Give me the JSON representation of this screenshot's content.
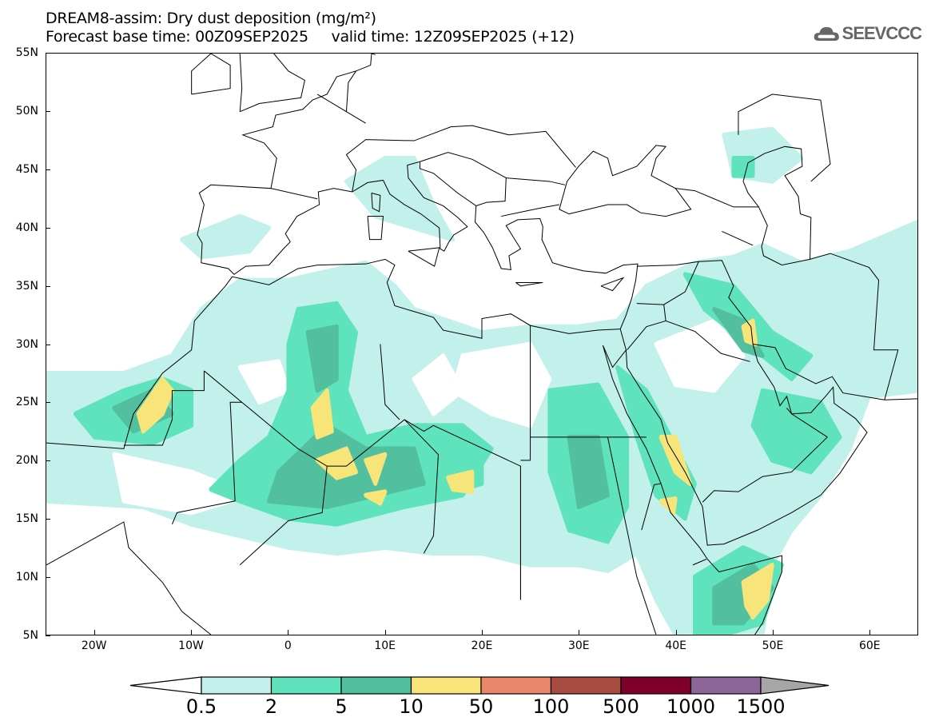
{
  "header": {
    "title": "DREAM8-assim: Dry dust deposition (mg/m²)",
    "base_time_label": "Forecast base time: 00Z09SEP2025",
    "valid_time_label": "valid time: 12Z09SEP2025 (+12)"
  },
  "logo": {
    "text": "SEEVCCC",
    "icon": "cloud-icon"
  },
  "map": {
    "lon_range": [
      -25,
      65
    ],
    "lat_range": [
      5,
      55
    ],
    "lat_ticks": [
      {
        "v": 55,
        "label": "55N"
      },
      {
        "v": 50,
        "label": "50N"
      },
      {
        "v": 45,
        "label": "45N"
      },
      {
        "v": 40,
        "label": "40N"
      },
      {
        "v": 35,
        "label": "35N"
      },
      {
        "v": 30,
        "label": "30N"
      },
      {
        "v": 25,
        "label": "25N"
      },
      {
        "v": 20,
        "label": "20N"
      },
      {
        "v": 15,
        "label": "15N"
      },
      {
        "v": 10,
        "label": "10N"
      },
      {
        "v": 5,
        "label": "5N"
      }
    ],
    "lon_ticks": [
      {
        "v": -20,
        "label": "20W"
      },
      {
        "v": -10,
        "label": "10W"
      },
      {
        "v": 0,
        "label": "0"
      },
      {
        "v": 10,
        "label": "10E"
      },
      {
        "v": 20,
        "label": "20E"
      },
      {
        "v": 30,
        "label": "30E"
      },
      {
        "v": 40,
        "label": "40E"
      },
      {
        "v": 50,
        "label": "50E"
      },
      {
        "v": 60,
        "label": "60E"
      }
    ],
    "dust_regions": [
      {
        "level": 1,
        "pts": [
          [
            -25,
            27.5
          ],
          [
            -17,
            27.5
          ],
          [
            -12,
            29
          ],
          [
            -9,
            33
          ],
          [
            -5,
            35.5
          ],
          [
            0,
            35.5
          ],
          [
            8,
            37
          ],
          [
            11,
            35
          ],
          [
            13,
            33
          ],
          [
            20,
            31
          ],
          [
            25,
            31.5
          ],
          [
            30,
            31.5
          ],
          [
            34,
            32
          ],
          [
            37,
            35
          ],
          [
            42,
            37
          ],
          [
            46,
            37.5
          ],
          [
            49,
            38.5
          ],
          [
            53,
            37
          ],
          [
            58,
            38
          ],
          [
            65,
            40.5
          ],
          [
            65,
            26
          ],
          [
            60,
            25.5
          ],
          [
            58,
            21
          ],
          [
            55,
            17
          ],
          [
            52,
            14
          ],
          [
            50,
            11
          ],
          [
            49,
            5
          ],
          [
            40,
            5
          ],
          [
            38,
            8
          ],
          [
            36,
            12
          ],
          [
            33,
            10.5
          ],
          [
            30,
            11
          ],
          [
            25,
            11
          ],
          [
            20,
            12
          ],
          [
            15,
            12
          ],
          [
            10,
            12.5
          ],
          [
            5,
            12
          ],
          [
            0,
            12.5
          ],
          [
            -5,
            13.5
          ],
          [
            -10,
            14.5
          ],
          [
            -15,
            16
          ],
          [
            -25,
            16.5
          ]
        ]
      },
      {
        "level": 1,
        "pts": [
          [
            6,
            44
          ],
          [
            10,
            46
          ],
          [
            13,
            46
          ],
          [
            15,
            42
          ],
          [
            17,
            39
          ],
          [
            13,
            40
          ],
          [
            9,
            41
          ]
        ]
      },
      {
        "level": 1,
        "pts": [
          [
            45,
            48
          ],
          [
            50,
            48.5
          ],
          [
            53,
            46
          ],
          [
            50,
            44
          ],
          [
            46,
            44.5
          ]
        ]
      },
      {
        "level": 1,
        "pts": [
          [
            -11,
            39
          ],
          [
            -5,
            41
          ],
          [
            -2,
            40
          ],
          [
            -4,
            38
          ],
          [
            -9,
            37.5
          ]
        ]
      },
      {
        "level": 0,
        "pts": [
          [
            18,
            29
          ],
          [
            25,
            30
          ],
          [
            27,
            27
          ],
          [
            25,
            23
          ],
          [
            21,
            24
          ],
          [
            17,
            26
          ]
        ]
      },
      {
        "level": 0,
        "pts": [
          [
            38,
            30
          ],
          [
            44,
            32
          ],
          [
            47,
            29
          ],
          [
            44,
            26
          ],
          [
            40,
            26.5
          ]
        ]
      },
      {
        "level": 0,
        "pts": [
          [
            -18,
            20.5
          ],
          [
            -10,
            19
          ],
          [
            -4,
            17
          ],
          [
            -10,
            15.5
          ],
          [
            -17,
            16.5
          ]
        ]
      },
      {
        "level": 0,
        "pts": [
          [
            13,
            27
          ],
          [
            16,
            29
          ],
          [
            18,
            26
          ],
          [
            15,
            24
          ]
        ]
      },
      {
        "level": 0,
        "pts": [
          [
            -5,
            28
          ],
          [
            -1,
            28.5
          ],
          [
            0,
            26
          ],
          [
            -3,
            25
          ]
        ]
      },
      {
        "level": 2,
        "pts": [
          [
            -22,
            24
          ],
          [
            -17,
            26
          ],
          [
            -13,
            27
          ],
          [
            -10,
            26
          ],
          [
            -10,
            23
          ],
          [
            -14,
            21.5
          ],
          [
            -20,
            22
          ]
        ]
      },
      {
        "level": 2,
        "pts": [
          [
            1,
            33
          ],
          [
            5,
            33.5
          ],
          [
            7,
            31
          ],
          [
            6,
            26
          ],
          [
            8,
            22
          ],
          [
            13,
            23
          ],
          [
            18,
            23
          ],
          [
            21,
            21
          ],
          [
            18,
            17
          ],
          [
            12,
            16
          ],
          [
            5,
            14.5
          ],
          [
            0,
            15
          ],
          [
            -5,
            16.5
          ],
          [
            -8,
            17.5
          ],
          [
            -5,
            20
          ],
          [
            -2,
            22
          ],
          [
            0,
            26
          ],
          [
            0,
            30
          ]
        ]
      },
      {
        "level": 2,
        "pts": [
          [
            14,
            20
          ],
          [
            20,
            20
          ],
          [
            20,
            18
          ],
          [
            16,
            17
          ]
        ]
      },
      {
        "level": 2,
        "pts": [
          [
            27,
            26
          ],
          [
            32,
            26.5
          ],
          [
            35,
            22
          ],
          [
            35,
            16
          ],
          [
            33,
            13
          ],
          [
            29,
            14
          ],
          [
            27,
            19
          ]
        ]
      },
      {
        "level": 2,
        "pts": [
          [
            34,
            28
          ],
          [
            37,
            26
          ],
          [
            42,
            18
          ],
          [
            41,
            15
          ],
          [
            38,
            17
          ],
          [
            36,
            22
          ]
        ]
      },
      {
        "level": 2,
        "pts": [
          [
            41,
            36
          ],
          [
            46,
            35
          ],
          [
            50,
            31
          ],
          [
            54,
            29
          ],
          [
            52,
            27
          ],
          [
            49,
            29
          ],
          [
            46,
            31
          ],
          [
            43,
            33
          ]
        ]
      },
      {
        "level": 2,
        "pts": [
          [
            49,
            26
          ],
          [
            55,
            25
          ],
          [
            57,
            22
          ],
          [
            54,
            19
          ],
          [
            50,
            20
          ],
          [
            48,
            23
          ]
        ]
      },
      {
        "level": 2,
        "pts": [
          [
            42,
            10
          ],
          [
            47,
            12.5
          ],
          [
            51,
            11
          ],
          [
            49,
            6
          ],
          [
            45,
            5
          ],
          [
            42,
            5
          ]
        ]
      },
      {
        "level": 2,
        "pts": [
          [
            46,
            46
          ],
          [
            48,
            46
          ],
          [
            48,
            44.5
          ],
          [
            46,
            44.5
          ]
        ]
      },
      {
        "level": 3,
        "pts": [
          [
            -18,
            24.5
          ],
          [
            -14,
            26
          ],
          [
            -12,
            24
          ],
          [
            -16,
            22.5
          ]
        ]
      },
      {
        "level": 3,
        "pts": [
          [
            2,
            31
          ],
          [
            5,
            31.5
          ],
          [
            5,
            27
          ],
          [
            3,
            26
          ]
        ]
      },
      {
        "level": 3,
        "pts": [
          [
            -1,
            19
          ],
          [
            4,
            23
          ],
          [
            8,
            21
          ],
          [
            13,
            21
          ],
          [
            14,
            18
          ],
          [
            9,
            17
          ],
          [
            4,
            16
          ],
          [
            -2,
            16.5
          ]
        ]
      },
      {
        "level": 3,
        "pts": [
          [
            29,
            22
          ],
          [
            32,
            22
          ],
          [
            33,
            17
          ],
          [
            30,
            16
          ]
        ]
      },
      {
        "level": 3,
        "pts": [
          [
            44,
            33
          ],
          [
            47,
            32
          ],
          [
            49,
            29
          ],
          [
            47,
            29.5
          ]
        ]
      },
      {
        "level": 3,
        "pts": [
          [
            44,
            9
          ],
          [
            48,
            11
          ],
          [
            50,
            9
          ],
          [
            47,
            6
          ],
          [
            44,
            6
          ]
        ]
      },
      {
        "level": 4,
        "pts": [
          [
            -15.5,
            24
          ],
          [
            -13,
            27
          ],
          [
            -12,
            26
          ],
          [
            -13,
            24
          ],
          [
            -15,
            22.5
          ]
        ]
      },
      {
        "level": 4,
        "pts": [
          [
            2.5,
            24.5
          ],
          [
            4,
            26
          ],
          [
            4.5,
            22.5
          ],
          [
            3,
            22
          ]
        ]
      },
      {
        "level": 4,
        "pts": [
          [
            3,
            20
          ],
          [
            6,
            21
          ],
          [
            7,
            19
          ],
          [
            5,
            18.5
          ]
        ]
      },
      {
        "level": 4,
        "pts": [
          [
            8,
            20
          ],
          [
            10,
            20.5
          ],
          [
            9,
            18
          ]
        ]
      },
      {
        "level": 4,
        "pts": [
          [
            8,
            17
          ],
          [
            10,
            17.3
          ],
          [
            9.5,
            16.3
          ]
        ]
      },
      {
        "level": 4,
        "pts": [
          [
            16.5,
            18.5
          ],
          [
            19,
            19
          ],
          [
            19,
            17.3
          ],
          [
            17,
            17.5
          ]
        ]
      },
      {
        "level": 4,
        "pts": [
          [
            47,
            31.5
          ],
          [
            48,
            32
          ],
          [
            48.3,
            30
          ],
          [
            47.3,
            30.3
          ]
        ]
      },
      {
        "level": 4,
        "pts": [
          [
            38.5,
            22
          ],
          [
            40,
            22
          ],
          [
            41.5,
            18
          ],
          [
            40,
            19
          ]
        ]
      },
      {
        "level": 4,
        "pts": [
          [
            38.5,
            16.5
          ],
          [
            40,
            16.7
          ],
          [
            39.8,
            15.5
          ]
        ]
      },
      {
        "level": 4,
        "pts": [
          [
            47,
            9.5
          ],
          [
            50,
            11
          ],
          [
            49.5,
            8
          ],
          [
            48,
            6.5
          ],
          [
            47.3,
            7.5
          ]
        ]
      }
    ]
  },
  "colorbar": {
    "colors": [
      "#c2f0ea",
      "#5ee3bd",
      "#52c09e",
      "#f7e57a",
      "#ea876a",
      "#a84b40",
      "#7f002a",
      "#8c6699"
    ],
    "under_color": "#ffffff",
    "over_color": "#a6a6a6",
    "labels": [
      "0.5",
      "2",
      "5",
      "10",
      "50",
      "100",
      "500",
      "1000",
      "1500"
    ]
  },
  "level_colors": {
    "0": "#ffffff",
    "1": "#c2f0ea",
    "2": "#5ee3bd",
    "3": "#52c09e",
    "4": "#f7e57a"
  }
}
